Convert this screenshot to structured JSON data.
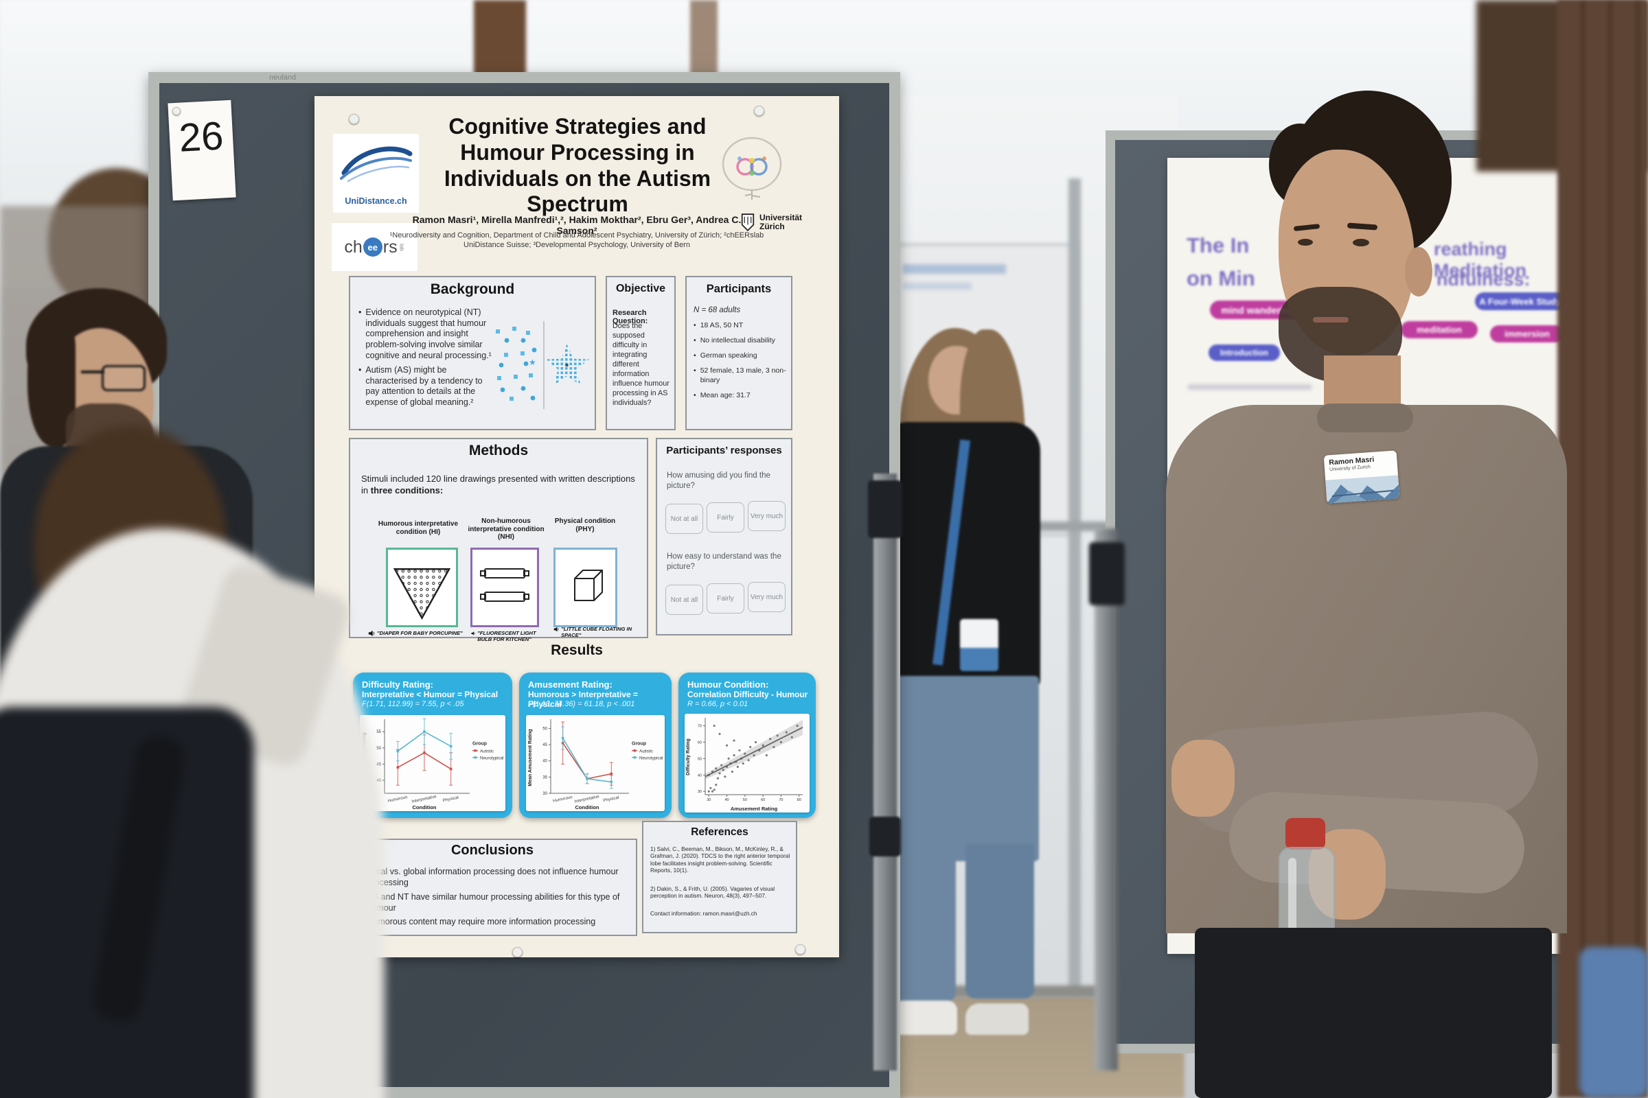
{
  "scene": {
    "board_number": "26",
    "frame_brand": "neuland"
  },
  "colors": {
    "results_panel": "#31b0e0",
    "condition_hi": "#57b894",
    "condition_nhi": "#8f6bb0",
    "condition_phy": "#7fb3d5",
    "pill_magenta": "#bf3d9e",
    "pill_indigo": "#5a5fc8",
    "autistic_series": "#cf5149",
    "neurotypical_series": "#5bb8cf"
  },
  "icons": {
    "speaker": "🔊",
    "push_pin": "●"
  },
  "poster": {
    "title": "Cognitive Strategies and Humour Processing in Individuals on the Autism Spectrum",
    "authors": "Ramon Masri¹, Mirella Manfredi¹,², Hakim Mokthar², Ebru Ger³, Andrea C. Samson²",
    "affil_line1": "¹Neurodiversity and Cognition, Department of Child and Adolescent Psychiatry, University of Zürich; ²chEERslab",
    "affil_line2": "UniDistance Suisse; ³Developmental Psychology, University of Bern",
    "logos": {
      "unidistance": "UniDistance.ch",
      "cheers_pre": "ch",
      "cheers_eyes": "ee",
      "cheers_post": "rs",
      "cheers_suffix": "lab",
      "uzh": "Universität Zürich"
    },
    "background": {
      "heading": "Background",
      "bullets": [
        "Evidence on neurotypical (NT) individuals suggest that humour comprehension and insight problem-solving involve similar cognitive and neural processing.¹",
        "Autism (AS) might be characterised by a tendency to pay attention to details at the expense of global meaning.²"
      ]
    },
    "objective": {
      "heading": "Objective",
      "label": "Research Question:",
      "text": "Does the supposed difficulty in integrating different information influence humour processing in AS individuals?"
    },
    "participants": {
      "heading": "Participants",
      "n_line": "N = 68 adults",
      "bullets": [
        "18 AS, 50 NT",
        "No intellectual disability",
        "German speaking",
        "52 female, 13 male, 3 non-binary",
        "Mean age: 31.7"
      ]
    },
    "methods": {
      "heading": "Methods",
      "intro_a": "Stimuli included 120 line drawings presented with written descriptions in ",
      "intro_b": "three conditions:",
      "conditions": [
        {
          "label": "Humorous interpretative condition (HI)",
          "caption": "\"DIAPER FOR BABY PORCUPINE\"",
          "color": "#57b894"
        },
        {
          "label": "Non-humorous interpretative condition (NHI)",
          "caption": "\"FLUORESCENT LIGHT BULB FOR KITCHEN\"",
          "color": "#8f6bb0"
        },
        {
          "label": "Physical condition (PHY)",
          "caption": "\"LITTLE CUBE FLOATING IN SPACE\"",
          "color": "#7fb3d5"
        }
      ]
    },
    "responses": {
      "heading": "Participants’ responses",
      "question1": "How amusing did you find the picture?",
      "question2": "How easy to understand was the picture?",
      "options": [
        "Not at all",
        "Fairly",
        "Very much"
      ]
    },
    "results": {
      "heading": "Results",
      "panels": [
        {
          "title_line1": "Difficulty Rating:",
          "title_line2": "Interpretative < Humour = Physical",
          "stat": "F(1.71, 112.99) = 7.55, p < .05",
          "chart": {
            "type": "line",
            "categories": [
              "Humorous",
              "Interpretative",
              "Physical"
            ],
            "xlabel": "Condition",
            "ylabel": "Mean Difficulty Rating",
            "ylim": [
              36,
              58
            ],
            "yticks": [
              40,
              45,
              50,
              55
            ],
            "legend_title": "Group",
            "series": [
              {
                "name": "Autistic",
                "color": "#cf5149",
                "values": [
                  44,
                  48.5,
                  43.5
                ],
                "err": [
                  5.5,
                  5.5,
                  5
                ]
              },
              {
                "name": "Neurotypical",
                "color": "#5bb8cf",
                "values": [
                  49,
                  55,
                  50.5
                ],
                "err": [
                  3,
                  4,
                  4
                ]
              }
            ]
          }
        },
        {
          "title_line1": "Amusement Rating:",
          "title_line2": "Humorous > Interpretative = Physical",
          "stat": "F(1.13, 74.36) = 61.18, p < .001",
          "chart": {
            "type": "line",
            "categories": [
              "Humorous",
              "Interpretative",
              "Physical"
            ],
            "xlabel": "Condition",
            "ylabel": "Mean Amusement Rating",
            "ylim": [
              30,
              52
            ],
            "yticks": [
              30,
              35,
              40,
              45,
              50
            ],
            "legend_title": "Group",
            "series": [
              {
                "name": "Autistic",
                "color": "#cf5149",
                "values": [
                  45.5,
                  34.5,
                  36
                ],
                "err": [
                  6.5,
                  1.5,
                  3.5
                ]
              },
              {
                "name": "Neurotypical",
                "color": "#5bb8cf",
                "values": [
                  47,
                  34.5,
                  33.5
                ],
                "err": [
                  3.5,
                  1.5,
                  2
                ]
              }
            ]
          }
        },
        {
          "title_line1": "Humour Condition:",
          "title_line2": "Correlation Difficulty - Humour",
          "stat": "R = 0.66, p < 0.01",
          "chart": {
            "type": "scatter",
            "xlabel": "Amusement Rating",
            "ylabel": "Difficulty Rating",
            "xlim": [
              28,
              82
            ],
            "ylim": [
              28,
              74
            ],
            "xticks": [
              30,
              40,
              50,
              60,
              70,
              80
            ],
            "yticks": [
              30,
              40,
              50,
              60,
              70
            ],
            "regression": [
              [
                28,
                39
              ],
              [
                82,
                69
              ]
            ],
            "points": [
              [
                30,
                30
              ],
              [
                31,
                32
              ],
              [
                32,
                30
              ],
              [
                33,
                31
              ],
              [
                34,
                34
              ],
              [
                30,
                40
              ],
              [
                32,
                42
              ],
              [
                34,
                44
              ],
              [
                35,
                38
              ],
              [
                36,
                41
              ],
              [
                37,
                46
              ],
              [
                38,
                43
              ],
              [
                39,
                39
              ],
              [
                40,
                45
              ],
              [
                41,
                50
              ],
              [
                42,
                47
              ],
              [
                43,
                42
              ],
              [
                44,
                52
              ],
              [
                45,
                48
              ],
              [
                46,
                45
              ],
              [
                47,
                55
              ],
              [
                48,
                50
              ],
              [
                49,
                47
              ],
              [
                50,
                53
              ],
              [
                52,
                49
              ],
              [
                53,
                57
              ],
              [
                55,
                52
              ],
              [
                56,
                60
              ],
              [
                58,
                55
              ],
              [
                60,
                58
              ],
              [
                62,
                52
              ],
              [
                64,
                62
              ],
              [
                66,
                57
              ],
              [
                68,
                64
              ],
              [
                70,
                60
              ],
              [
                73,
                66
              ],
              [
                76,
                63
              ],
              [
                79,
                70
              ],
              [
                33,
                70
              ],
              [
                36,
                65
              ],
              [
                40,
                58
              ],
              [
                44,
                61
              ]
            ]
          }
        }
      ]
    },
    "conclusions": {
      "heading": "Conclusions",
      "bullets": [
        "Local vs. global information processing does not influence humour processing",
        "AS and NT have similar humour processing abilities for this type of humour",
        "Humorous content may require more information processing"
      ]
    },
    "references": {
      "heading": "References",
      "items": [
        "1) Salvi, C., Beeman, M., Bikson, M., McKinley, R., & Grafman, J. (2020). TDCS to the right anterior temporal lobe facilitates insight problem-solving. Scientific Reports, 10(1).",
        "2) Dakin, S., & Frith, U. (2005). Vagaries of visual perception in autism. Neuron, 48(3), 497–507."
      ],
      "contact": "Contact information: ramon.masri@uzh.ch"
    }
  },
  "right_poster": {
    "title_frag_top_left": "The In",
    "title_frag_bottom_left": "on Min",
    "title_frag_top_right": "reathing Meditation",
    "title_frag_bottom_right": "ndfulness:",
    "study_badge": "A Four-Week Study",
    "keyword_pills": [
      "mind wandering",
      "meditation",
      "immersion"
    ],
    "section_pill": "Introduction"
  },
  "badge": {
    "name": "Ramon Masri",
    "org": "University of Zurich"
  }
}
